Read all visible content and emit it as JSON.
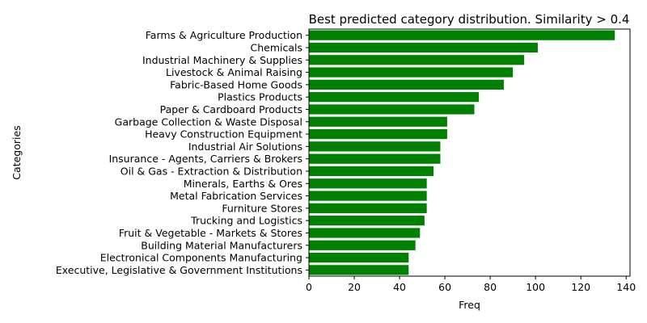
{
  "chart_data": {
    "type": "bar",
    "orientation": "horizontal",
    "title": "Best predicted category distribution. Similarity > 0.4",
    "xlabel": "Freq",
    "ylabel": "Categories",
    "xlim": [
      0,
      141.7
    ],
    "x_ticks": [
      0,
      20,
      40,
      60,
      80,
      100,
      120,
      140
    ],
    "grid": false,
    "bar_color": "#008000",
    "categories": [
      "Farms & Agriculture Production",
      "Chemicals",
      "Industrial Machinery & Supplies",
      "Livestock & Animal Raising",
      "Fabric-Based Home Goods",
      "Plastics Products",
      "Paper & Cardboard Products",
      "Garbage Collection & Waste Disposal",
      "Heavy Construction Equipment",
      "Industrial Air Solutions",
      "Insurance - Agents, Carriers & Brokers",
      "Oil & Gas - Extraction & Distribution",
      "Minerals, Earths & Ores",
      "Metal Fabrication Services",
      "Furniture Stores",
      "Trucking and Logistics",
      "Fruit & Vegetable - Markets & Stores",
      "Building Material Manufacturers",
      "Electronical Components Manufacturing",
      "Executive, Legislative & Government Institutions"
    ],
    "values": [
      135,
      101,
      95,
      90,
      86,
      75,
      73,
      61,
      61,
      58,
      58,
      55,
      52,
      52,
      52,
      51,
      49,
      47,
      44,
      44
    ]
  }
}
